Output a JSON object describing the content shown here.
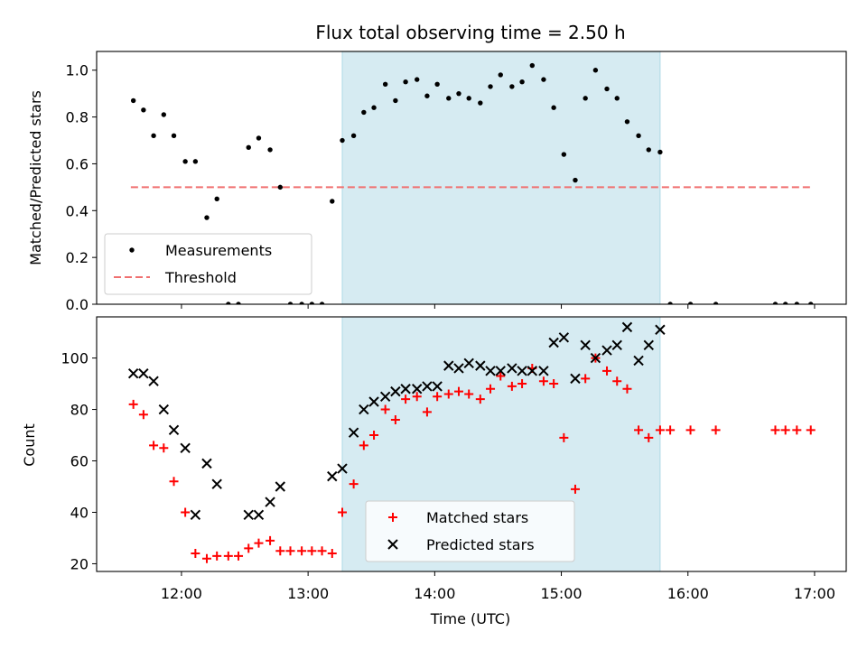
{
  "chart_data": [
    {
      "type": "scatter",
      "title": "Flux total observing time = 2.50 h",
      "xlabel": "",
      "ylabel": "Matched/Predicted stars",
      "xlim": [
        11.33,
        17.25
      ],
      "ylim": [
        0.0,
        1.08
      ],
      "yticks": [
        0.0,
        0.2,
        0.4,
        0.6,
        0.8,
        1.0
      ],
      "ytick_labels": [
        "0.0",
        "0.2",
        "0.4",
        "0.6",
        "0.8",
        "1.0"
      ],
      "xticks": [
        12,
        13,
        14,
        15,
        16,
        17
      ],
      "shaded_span": [
        13.27,
        15.78
      ],
      "shaded_color": "#add8e6",
      "threshold": {
        "name": "Threshold",
        "value": 0.5,
        "x_range": [
          11.6,
          16.97
        ],
        "color": "#f07070"
      },
      "legend": [
        "Measurements",
        "Threshold"
      ],
      "legend_position": "lower-left",
      "series": [
        {
          "name": "Measurements",
          "marker": "dot",
          "color": "#000000",
          "x": [
            11.62,
            11.7,
            11.78,
            11.86,
            11.94,
            12.03,
            12.11,
            12.2,
            12.28,
            12.37,
            12.45,
            12.53,
            12.61,
            12.7,
            12.78,
            12.86,
            12.95,
            13.03,
            13.11,
            13.19,
            13.27,
            13.36,
            13.44,
            13.52,
            13.61,
            13.69,
            13.77,
            13.86,
            13.94,
            14.02,
            14.11,
            14.19,
            14.27,
            14.36,
            14.44,
            14.52,
            14.61,
            14.69,
            14.77,
            14.86,
            14.94,
            15.02,
            15.11,
            15.19,
            15.27,
            15.36,
            15.44,
            15.52,
            15.61,
            15.69,
            15.78,
            15.86,
            16.02,
            16.22,
            16.69,
            16.77,
            16.86,
            16.97
          ],
          "y": [
            0.87,
            0.83,
            0.72,
            0.81,
            0.72,
            0.61,
            0.61,
            0.37,
            0.45,
            0.0,
            0.0,
            0.67,
            0.71,
            0.66,
            0.5,
            0.0,
            0.0,
            0.0,
            0.0,
            0.44,
            0.7,
            0.72,
            0.82,
            0.84,
            0.94,
            0.87,
            0.95,
            0.96,
            0.89,
            0.94,
            0.88,
            0.9,
            0.88,
            0.86,
            0.93,
            0.98,
            0.93,
            0.95,
            1.02,
            0.96,
            0.84,
            0.64,
            0.53,
            0.88,
            1.0,
            0.92,
            0.88,
            0.78,
            0.72,
            0.66,
            0.65,
            0.0,
            0.0,
            0.0,
            0.0,
            0.0,
            0.0,
            0.0
          ]
        }
      ]
    },
    {
      "type": "scatter",
      "title": "",
      "xlabel": "Time (UTC)",
      "ylabel": "Count",
      "xlim": [
        11.33,
        17.25
      ],
      "ylim": [
        17.0,
        116.0
      ],
      "yticks": [
        20,
        40,
        60,
        80,
        100
      ],
      "ytick_labels": [
        "20",
        "40",
        "60",
        "80",
        "100"
      ],
      "xticks": [
        12,
        13,
        14,
        15,
        16,
        17
      ],
      "xtick_labels": [
        "12:00",
        "13:00",
        "14:00",
        "15:00",
        "16:00",
        "17:00"
      ],
      "shaded_span": [
        13.27,
        15.78
      ],
      "shaded_color": "#add8e6",
      "legend": [
        "Matched stars",
        "Predicted stars"
      ],
      "legend_position": "lower-center",
      "series": [
        {
          "name": "Matched stars",
          "marker": "plus",
          "color": "#ff0000",
          "x": [
            11.62,
            11.7,
            11.78,
            11.86,
            11.94,
            12.03,
            12.11,
            12.2,
            12.28,
            12.37,
            12.45,
            12.53,
            12.61,
            12.7,
            12.78,
            12.86,
            12.95,
            13.03,
            13.11,
            13.19,
            13.27,
            13.36,
            13.44,
            13.52,
            13.61,
            13.69,
            13.77,
            13.86,
            13.94,
            14.02,
            14.11,
            14.19,
            14.27,
            14.36,
            14.44,
            14.52,
            14.61,
            14.69,
            14.77,
            14.86,
            14.94,
            15.02,
            15.11,
            15.19,
            15.27,
            15.36,
            15.44,
            15.52,
            15.61,
            15.69,
            15.78,
            15.86,
            16.02,
            16.22,
            16.69,
            16.77,
            16.86,
            16.97
          ],
          "y": [
            82,
            78,
            66,
            65,
            52,
            40,
            24,
            22,
            23,
            23,
            23,
            26,
            28,
            29,
            25,
            25,
            25,
            25,
            25,
            24,
            40,
            51,
            66,
            70,
            80,
            76,
            84,
            85,
            79,
            85,
            86,
            87,
            86,
            84,
            88,
            93,
            89,
            90,
            96,
            91,
            90,
            69,
            49,
            92,
            100,
            95,
            91,
            88,
            72,
            69,
            72,
            72,
            72,
            72,
            72,
            72,
            72,
            72
          ]
        },
        {
          "name": "Predicted stars",
          "marker": "x",
          "color": "#000000",
          "x": [
            11.62,
            11.7,
            11.78,
            11.86,
            11.94,
            12.03,
            12.11,
            12.2,
            12.28,
            12.53,
            12.61,
            12.7,
            12.78,
            13.19,
            13.27,
            13.36,
            13.44,
            13.52,
            13.61,
            13.69,
            13.77,
            13.86,
            13.94,
            14.02,
            14.11,
            14.19,
            14.27,
            14.36,
            14.44,
            14.52,
            14.61,
            14.69,
            14.77,
            14.86,
            14.94,
            15.02,
            15.11,
            15.19,
            15.27,
            15.36,
            15.44,
            15.52,
            15.61,
            15.69,
            15.78
          ],
          "y": [
            94,
            94,
            91,
            80,
            72,
            65,
            39,
            59,
            51,
            39,
            39,
            44,
            50,
            54,
            57,
            71,
            80,
            83,
            85,
            87,
            88,
            88,
            89,
            89,
            97,
            96,
            98,
            97,
            95,
            95,
            96,
            95,
            95,
            95,
            106,
            108,
            92,
            105,
            100,
            103,
            105,
            112,
            99,
            105,
            111
          ]
        }
      ]
    }
  ]
}
